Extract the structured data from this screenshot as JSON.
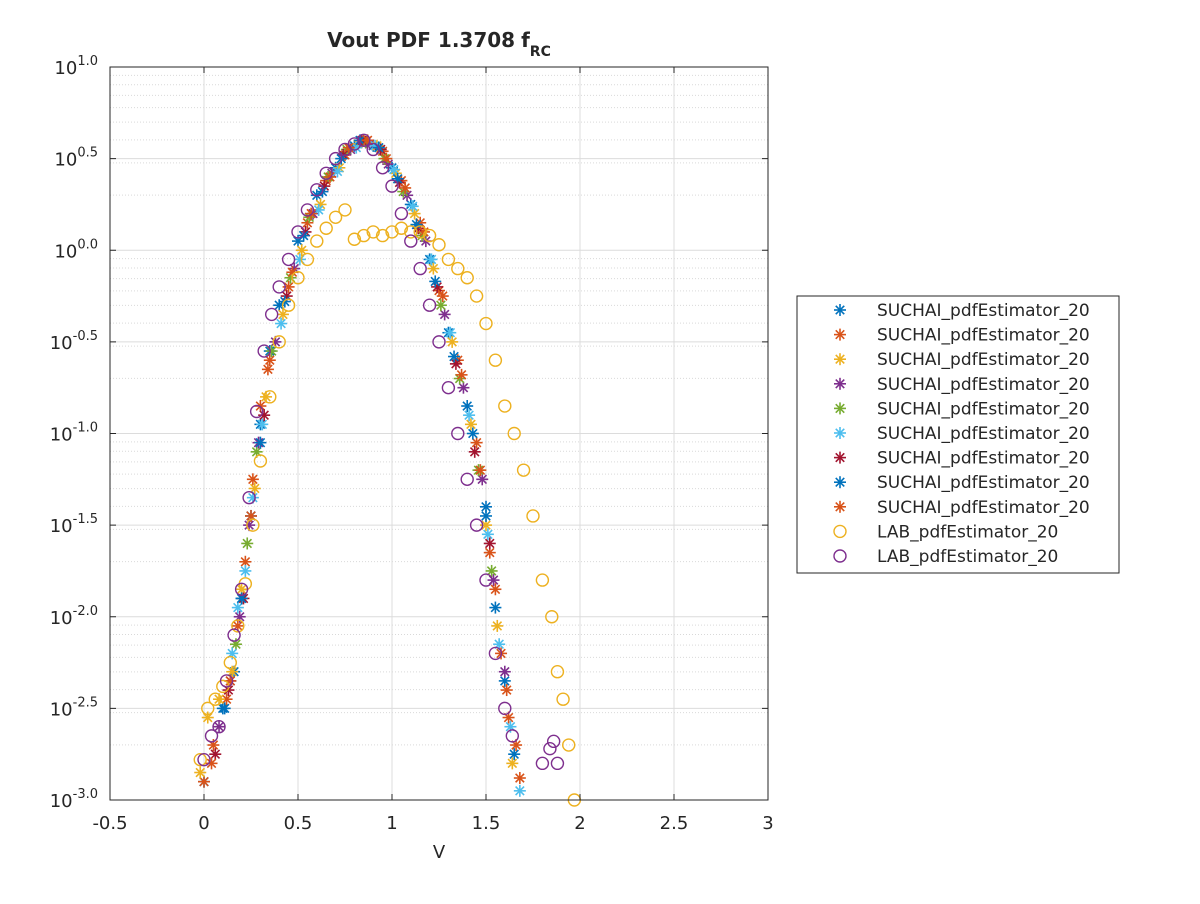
{
  "chart_data": {
    "type": "scatter",
    "title": "Vout PDF 1.3708",
    "title_symbol": "f",
    "title_subscript": "RC",
    "xlabel": "V",
    "ylabel": "",
    "x_scale": "linear",
    "y_scale": "log",
    "xlim": [
      -0.5,
      3
    ],
    "ylim_log10": [
      -3.0,
      1.0
    ],
    "x_ticks": [
      -0.5,
      0,
      0.5,
      1,
      1.5,
      2,
      2.5,
      3
    ],
    "x_tick_labels": [
      "-0.5",
      "0",
      "0.5",
      "1",
      "1.5",
      "2",
      "2.5",
      "3"
    ],
    "y_ticks_log10": [
      -3.0,
      -2.5,
      -2.0,
      -1.5,
      -1.0,
      -0.5,
      0.0,
      0.5,
      1.0
    ],
    "y_tick_exponents": [
      "-3.0",
      "-2.5",
      "-2.0",
      "-1.5",
      "-1.0",
      "-0.5",
      "0.0",
      "0.5",
      "1.0"
    ],
    "y_tick_base": "10",
    "grid": true,
    "minor_grid": true,
    "legend_position": "right-outside",
    "series": [
      {
        "name": "SUCHAI_pdfEstimator_20",
        "marker": "star",
        "color": "#0072BD",
        "x": [
          0.0,
          0.1,
          0.16,
          0.2,
          0.25,
          0.3,
          0.35,
          0.4,
          0.5,
          0.6,
          0.7,
          0.8,
          0.85,
          0.9,
          1.0,
          1.1,
          1.2,
          1.3,
          1.4,
          1.5,
          1.55,
          1.6,
          1.65
        ],
        "log10_y": [
          -2.9,
          -2.5,
          -2.3,
          -1.9,
          -1.45,
          -0.95,
          -0.55,
          -0.3,
          0.05,
          0.3,
          0.45,
          0.57,
          0.6,
          0.57,
          0.45,
          0.25,
          -0.05,
          -0.45,
          -0.85,
          -1.4,
          -1.95,
          -2.35,
          -2.75
        ]
      },
      {
        "name": "SUCHAI_pdfEstimator_20",
        "marker": "star",
        "color": "#D95319",
        "x": [
          0.0,
          0.05,
          0.12,
          0.18,
          0.22,
          0.26,
          0.3,
          0.35,
          0.45,
          0.55,
          0.65,
          0.75,
          0.85,
          0.95,
          1.05,
          1.15,
          1.25,
          1.35,
          1.45,
          1.52,
          1.58,
          1.62,
          1.68
        ],
        "log10_y": [
          -2.9,
          -2.7,
          -2.45,
          -2.05,
          -1.7,
          -1.25,
          -0.85,
          -0.6,
          -0.2,
          0.15,
          0.38,
          0.52,
          0.6,
          0.54,
          0.38,
          0.15,
          -0.22,
          -0.6,
          -1.05,
          -1.65,
          -2.2,
          -2.55,
          -2.88
        ]
      },
      {
        "name": "SUCHAI_pdfEstimator_20",
        "marker": "star",
        "color": "#EDB120",
        "x": [
          -0.02,
          0.02,
          0.08,
          0.15,
          0.2,
          0.27,
          0.33,
          0.42,
          0.52,
          0.62,
          0.72,
          0.82,
          0.92,
          1.02,
          1.12,
          1.22,
          1.32,
          1.42,
          1.5,
          1.56,
          1.64
        ],
        "log10_y": [
          -2.85,
          -2.55,
          -2.45,
          -2.3,
          -1.85,
          -1.3,
          -0.8,
          -0.35,
          0.0,
          0.25,
          0.45,
          0.58,
          0.57,
          0.42,
          0.2,
          -0.1,
          -0.5,
          -0.95,
          -1.5,
          -2.05,
          -2.8
        ]
      },
      {
        "name": "SUCHAI_pdfEstimator_20",
        "marker": "star",
        "color": "#7E2F8E",
        "x": [
          0.08,
          0.14,
          0.19,
          0.24,
          0.29,
          0.38,
          0.48,
          0.58,
          0.68,
          0.78,
          0.88,
          0.98,
          1.08,
          1.18,
          1.28,
          1.38,
          1.48,
          1.54,
          1.6
        ],
        "log10_y": [
          -2.6,
          -2.35,
          -2.0,
          -1.5,
          -1.05,
          -0.5,
          -0.1,
          0.2,
          0.42,
          0.55,
          0.58,
          0.47,
          0.3,
          0.05,
          -0.35,
          -0.75,
          -1.25,
          -1.8,
          -2.3
        ]
      },
      {
        "name": "SUCHAI_pdfEstimator_20",
        "marker": "star",
        "color": "#77AC30",
        "x": [
          0.17,
          0.23,
          0.28,
          0.36,
          0.46,
          0.56,
          0.66,
          0.76,
          0.86,
          0.96,
          1.06,
          1.16,
          1.26,
          1.36,
          1.46,
          1.53
        ],
        "log10_y": [
          -2.15,
          -1.6,
          -1.1,
          -0.55,
          -0.15,
          0.18,
          0.4,
          0.55,
          0.59,
          0.5,
          0.32,
          0.08,
          -0.3,
          -0.7,
          -1.2,
          -1.75
        ]
      },
      {
        "name": "SUCHAI_pdfEstimator_20",
        "marker": "star",
        "color": "#4DBEEE",
        "x": [
          0.15,
          0.18,
          0.22,
          0.26,
          0.31,
          0.41,
          0.51,
          0.61,
          0.71,
          0.81,
          0.91,
          1.01,
          1.11,
          1.21,
          1.31,
          1.41,
          1.51,
          1.57,
          1.63,
          1.68
        ],
        "log10_y": [
          -2.2,
          -1.95,
          -1.75,
          -1.35,
          -0.95,
          -0.4,
          -0.05,
          0.22,
          0.43,
          0.56,
          0.57,
          0.44,
          0.24,
          -0.05,
          -0.45,
          -0.9,
          -1.55,
          -2.15,
          -2.6,
          -2.95
        ]
      },
      {
        "name": "SUCHAI_pdfEstimator_20",
        "marker": "star",
        "color": "#A2142F",
        "x": [
          0.06,
          0.13,
          0.21,
          0.32,
          0.44,
          0.54,
          0.64,
          0.74,
          0.84,
          0.94,
          1.04,
          1.14,
          1.24,
          1.34,
          1.44,
          1.52
        ],
        "log10_y": [
          -2.75,
          -2.4,
          -1.9,
          -0.9,
          -0.25,
          0.1,
          0.35,
          0.52,
          0.6,
          0.55,
          0.37,
          0.12,
          -0.2,
          -0.62,
          -1.1,
          -1.6
        ]
      },
      {
        "name": "SUCHAI_pdfEstimator_20",
        "marker": "star",
        "color": "#0072BD",
        "x": [
          0.11,
          0.2,
          0.3,
          0.43,
          0.53,
          0.63,
          0.73,
          0.83,
          0.93,
          1.03,
          1.13,
          1.23,
          1.33,
          1.43,
          1.5
        ],
        "log10_y": [
          -2.5,
          -1.9,
          -1.05,
          -0.28,
          0.08,
          0.32,
          0.5,
          0.6,
          0.56,
          0.39,
          0.14,
          -0.17,
          -0.58,
          -1.0,
          -1.45
        ]
      },
      {
        "name": "SUCHAI_pdfEstimator_20",
        "marker": "star",
        "color": "#D95319",
        "x": [
          0.04,
          0.14,
          0.25,
          0.34,
          0.47,
          0.57,
          0.67,
          0.77,
          0.87,
          0.97,
          1.07,
          1.17,
          1.27,
          1.37,
          1.47,
          1.55,
          1.61,
          1.66
        ],
        "log10_y": [
          -2.8,
          -2.35,
          -1.45,
          -0.65,
          -0.12,
          0.2,
          0.4,
          0.56,
          0.6,
          0.5,
          0.34,
          0.1,
          -0.25,
          -0.68,
          -1.2,
          -1.85,
          -2.4,
          -2.7
        ]
      },
      {
        "name": "LAB_pdfEstimator_20",
        "marker": "circle",
        "color": "#EDB120",
        "x": [
          -0.02,
          0.02,
          0.06,
          0.1,
          0.14,
          0.18,
          0.22,
          0.26,
          0.3,
          0.35,
          0.4,
          0.45,
          0.5,
          0.55,
          0.6,
          0.65,
          0.7,
          0.75,
          0.8,
          0.85,
          0.9,
          0.95,
          1.0,
          1.05,
          1.1,
          1.15,
          1.2,
          1.25,
          1.3,
          1.35,
          1.4,
          1.45,
          1.5,
          1.55,
          1.6,
          1.65,
          1.7,
          1.75,
          1.8,
          1.85,
          1.88,
          1.91,
          1.94,
          1.97
        ],
        "log10_y": [
          -2.78,
          -2.5,
          -2.45,
          -2.38,
          -2.25,
          -2.05,
          -1.82,
          -1.5,
          -1.15,
          -0.8,
          -0.5,
          -0.3,
          -0.15,
          -0.05,
          0.05,
          0.12,
          0.18,
          0.22,
          0.06,
          0.08,
          0.1,
          0.08,
          0.1,
          0.12,
          0.1,
          0.1,
          0.08,
          0.03,
          -0.05,
          -0.1,
          -0.15,
          -0.25,
          -0.4,
          -0.6,
          -0.85,
          -1.0,
          -1.2,
          -1.45,
          -1.8,
          -2.0,
          -2.3,
          -2.45,
          -2.7,
          -3.0
        ]
      },
      {
        "name": "LAB_pdfEstimator_20",
        "marker": "circle",
        "color": "#7E2F8E",
        "x": [
          0.0,
          0.04,
          0.08,
          0.12,
          0.16,
          0.2,
          0.24,
          0.28,
          0.32,
          0.36,
          0.4,
          0.45,
          0.5,
          0.55,
          0.6,
          0.65,
          0.7,
          0.75,
          0.8,
          0.85,
          0.9,
          0.95,
          1.0,
          1.05,
          1.1,
          1.15,
          1.2,
          1.25,
          1.3,
          1.35,
          1.4,
          1.45,
          1.5,
          1.55,
          1.6,
          1.64,
          1.8,
          1.84,
          1.86,
          1.88
        ],
        "log10_y": [
          -2.78,
          -2.65,
          -2.6,
          -2.35,
          -2.1,
          -1.85,
          -1.35,
          -0.88,
          -0.55,
          -0.35,
          -0.2,
          -0.05,
          0.1,
          0.22,
          0.33,
          0.42,
          0.5,
          0.55,
          0.58,
          0.6,
          0.55,
          0.45,
          0.35,
          0.2,
          0.05,
          -0.1,
          -0.3,
          -0.5,
          -0.75,
          -1.0,
          -1.25,
          -1.5,
          -1.8,
          -2.2,
          -2.5,
          -2.65,
          -2.8,
          -2.72,
          -2.68,
          -2.8
        ]
      }
    ]
  }
}
